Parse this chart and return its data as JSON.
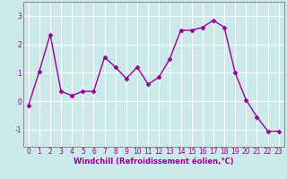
{
  "x": [
    0,
    1,
    2,
    3,
    4,
    5,
    6,
    7,
    8,
    9,
    10,
    11,
    12,
    13,
    14,
    15,
    16,
    17,
    18,
    19,
    20,
    21,
    22,
    23
  ],
  "y": [
    -0.15,
    1.05,
    2.35,
    0.35,
    0.2,
    0.35,
    0.35,
    1.55,
    1.2,
    0.8,
    1.2,
    0.6,
    0.85,
    1.5,
    2.5,
    2.5,
    2.6,
    2.85,
    2.6,
    1.0,
    0.05,
    -0.55,
    -1.05,
    -1.05
  ],
  "line_color": "#990099",
  "marker": "D",
  "marker_size": 2.5,
  "bg_color": "#cce9e9",
  "plot_bg_color": "#cce9e9",
  "grid_color": "#ffffff",
  "xlabel": "Windchill (Refroidissement éolien,°C)",
  "xlabel_fontsize": 6.0,
  "yticks": [
    -1,
    0,
    1,
    2,
    3
  ],
  "ytick_labels": [
    "-1",
    "0",
    "1",
    "2",
    "3"
  ],
  "xticks": [
    0,
    1,
    2,
    3,
    4,
    5,
    6,
    7,
    8,
    9,
    10,
    11,
    12,
    13,
    14,
    15,
    16,
    17,
    18,
    19,
    20,
    21,
    22,
    23
  ],
  "ylim": [
    -1.6,
    3.5
  ],
  "xlim": [
    -0.5,
    23.5
  ],
  "tick_fontsize": 5.5,
  "line_width": 1.0,
  "spine_color": "#888888"
}
